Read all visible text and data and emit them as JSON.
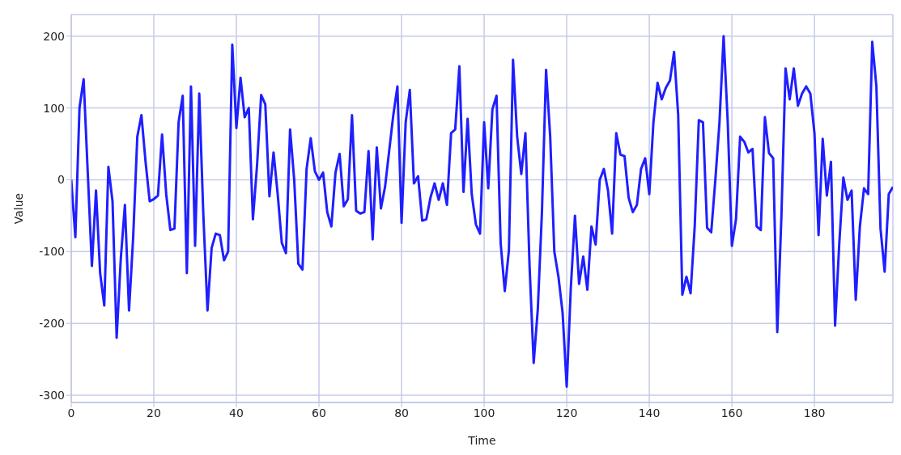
{
  "chart_data": {
    "type": "line",
    "xlabel": "Time",
    "ylabel": "Value",
    "xlim": [
      0,
      199
    ],
    "ylim": [
      -310,
      230
    ],
    "xticks": [
      0,
      20,
      40,
      60,
      80,
      100,
      120,
      140,
      160,
      180
    ],
    "yticks": [
      -300,
      -200,
      -100,
      0,
      100,
      200
    ],
    "grid": true,
    "legend": false,
    "marker": "none",
    "line_style": "solid",
    "x": [
      0,
      1,
      2,
      3,
      4,
      5,
      6,
      7,
      8,
      9,
      10,
      11,
      12,
      13,
      14,
      15,
      16,
      17,
      18,
      19,
      20,
      21,
      22,
      23,
      24,
      25,
      26,
      27,
      28,
      29,
      30,
      31,
      32,
      33,
      34,
      35,
      36,
      37,
      38,
      39,
      40,
      41,
      42,
      43,
      44,
      45,
      46,
      47,
      48,
      49,
      50,
      51,
      52,
      53,
      54,
      55,
      56,
      57,
      58,
      59,
      60,
      61,
      62,
      63,
      64,
      65,
      66,
      67,
      68,
      69,
      70,
      71,
      72,
      73,
      74,
      75,
      76,
      77,
      78,
      79,
      80,
      81,
      82,
      83,
      84,
      85,
      86,
      87,
      88,
      89,
      90,
      91,
      92,
      93,
      94,
      95,
      96,
      97,
      98,
      99,
      100,
      101,
      102,
      103,
      104,
      105,
      106,
      107,
      108,
      109,
      110,
      111,
      112,
      113,
      114,
      115,
      116,
      117,
      118,
      119,
      120,
      121,
      122,
      123,
      124,
      125,
      126,
      127,
      128,
      129,
      130,
      131,
      132,
      133,
      134,
      135,
      136,
      137,
      138,
      139,
      140,
      141,
      142,
      143,
      144,
      145,
      146,
      147,
      148,
      149,
      150,
      151,
      152,
      153,
      154,
      155,
      156,
      157,
      158,
      159,
      160,
      161,
      162,
      163,
      164,
      165,
      166,
      167,
      168,
      169,
      170,
      171,
      172,
      173,
      174,
      175,
      176,
      177,
      178,
      179,
      180,
      181,
      182,
      183,
      184,
      185,
      186,
      187,
      188,
      189,
      190,
      191,
      192,
      193,
      194,
      195,
      196,
      197,
      198,
      199
    ],
    "series": [
      {
        "color": "#1f1fff",
        "values": [
          0,
          -80,
          100,
          140,
          10,
          -120,
          -15,
          -130,
          -175,
          18,
          -30,
          -220,
          -110,
          -35,
          -182,
          -80,
          60,
          90,
          25,
          -30,
          -27,
          -22,
          63,
          -20,
          -70,
          -68,
          80,
          117,
          -130,
          130,
          -92,
          120,
          -50,
          -182,
          -95,
          -75,
          -77,
          -112,
          -100,
          188,
          72,
          142,
          87,
          100,
          -55,
          20,
          118,
          105,
          -23,
          38,
          -20,
          -88,
          -102,
          70,
          0,
          -117,
          -125,
          15,
          58,
          12,
          0,
          10,
          -45,
          -65,
          10,
          36,
          -37,
          -27,
          90,
          -43,
          -47,
          -45,
          40,
          -83,
          45,
          -40,
          -10,
          40,
          90,
          130,
          -60,
          80,
          125,
          -5,
          5,
          -57,
          -55,
          -25,
          -5,
          -28,
          -5,
          -35,
          65,
          70,
          158,
          -17,
          85,
          -20,
          -62,
          -75,
          80,
          -12,
          98,
          117,
          -88,
          -155,
          -98,
          167,
          60,
          8,
          65,
          -120,
          -255,
          -180,
          -45,
          153,
          60,
          -100,
          -135,
          -185,
          -288,
          -150,
          -50,
          -145,
          -107,
          -153,
          -65,
          -90,
          0,
          15,
          -15,
          -75,
          65,
          35,
          33,
          -25,
          -45,
          -35,
          15,
          30,
          -20,
          80,
          135,
          112,
          128,
          138,
          178,
          90,
          -160,
          -135,
          -158,
          -65,
          83,
          80,
          -67,
          -73,
          0,
          80,
          200,
          80,
          -92,
          -55,
          60,
          53,
          38,
          43,
          -65,
          -70,
          87,
          37,
          30,
          -212,
          -50,
          155,
          112,
          155,
          103,
          120,
          130,
          120,
          65,
          -77,
          57,
          -22,
          25,
          -203,
          -90,
          3,
          -28,
          -15,
          -167,
          -65,
          -12,
          -20,
          192,
          130,
          -68,
          -128,
          -20,
          -10
        ]
      }
    ]
  }
}
